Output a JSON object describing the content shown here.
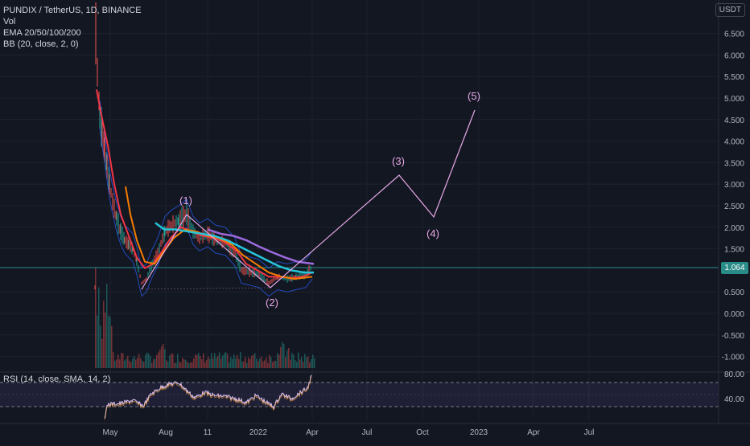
{
  "legend": {
    "symbol": "PUNDIX / TetherUS, 1D, BINANCE",
    "vol": "Vol",
    "ema": "EMA 20/50/100/200",
    "bb": "BB (20, close, 2, 0)"
  },
  "rsi": {
    "label": "RSI (14, close, SMA, 14, 2)",
    "ticks": [
      "80.00",
      "40.00"
    ]
  },
  "price_axis": {
    "currency": "USDT",
    "ticks": [
      "6.500",
      "6.000",
      "5.500",
      "5.000",
      "4.500",
      "4.000",
      "3.500",
      "3.000",
      "2.500",
      "2.000",
      "1.500",
      "0.500",
      "0.000",
      "-0.500",
      "-1.000"
    ],
    "current_price": "1.064"
  },
  "time_axis": {
    "ticks": [
      "May",
      "Aug",
      "11",
      "2022",
      "Apr",
      "Jul",
      "Oct",
      "2023",
      "Apr",
      "Jul"
    ]
  },
  "waves": {
    "labels": [
      "(1)",
      "(2)",
      "(3)",
      "(4)",
      "(5)"
    ]
  },
  "colors": {
    "background": "#131722",
    "ema20": "#f23645",
    "ema50": "#f57c00",
    "ema100": "#26c6da",
    "ema200": "#9c6ade",
    "bb": "#2962ff",
    "wave": "#e8a8e8",
    "price_line": "#2a8c88",
    "up": "#26a69a",
    "down": "#ef5350",
    "rsi": "#e0c8ff"
  }
}
